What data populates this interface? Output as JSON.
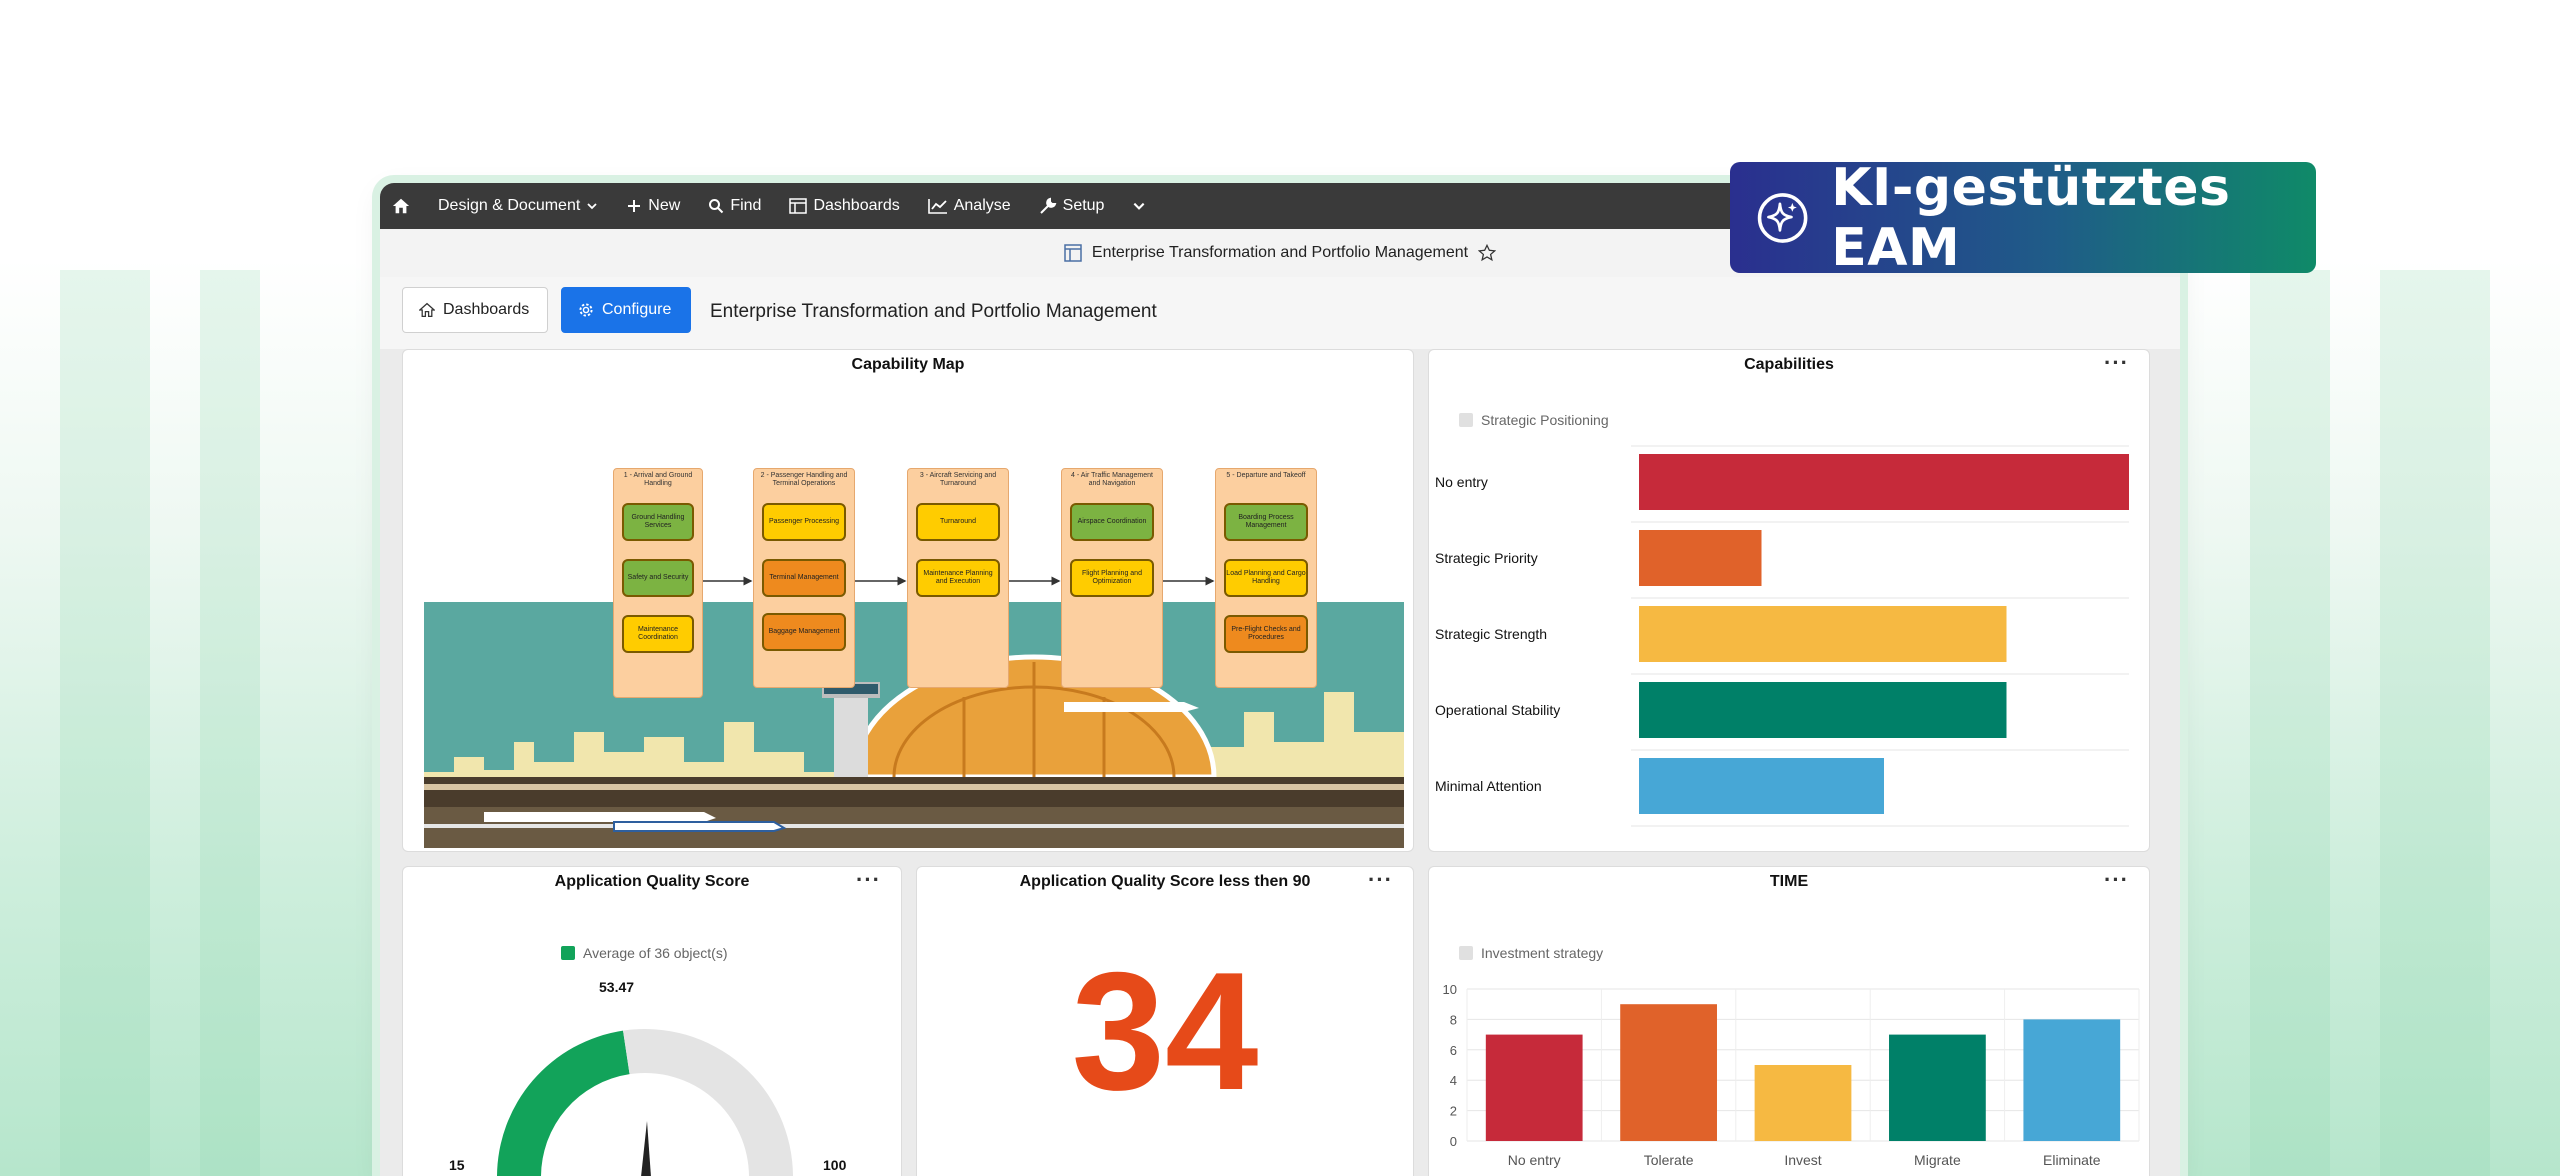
{
  "badge": {
    "text": "KI-gestütztes EAM",
    "icon": "sparkle-icon"
  },
  "topbar": {
    "items": [
      {
        "label": "Design & Document",
        "icon": "chevron-down-icon"
      },
      {
        "label": "New",
        "icon": "plus-icon"
      },
      {
        "label": "Find",
        "icon": "search-icon"
      },
      {
        "label": "Dashboards",
        "icon": "dashboard-icon"
      },
      {
        "label": "Analyse",
        "icon": "chart-line-icon"
      },
      {
        "label": "Setup",
        "icon": "wrench-icon"
      }
    ]
  },
  "titlebar": {
    "title": "Enterprise Transformation and Portfolio Management"
  },
  "dashhead": {
    "dashboards_label": "Dashboards",
    "configure_label": "Configure",
    "title": "Enterprise Transformation and Portfolio Management"
  },
  "capability_map": {
    "title": "Capability Map",
    "columns": [
      {
        "header": "1 - Arrival and Ground Handling",
        "boxes": [
          "Ground Handling Services",
          "Safety and Security",
          "Maintenance Coordination"
        ]
      },
      {
        "header": "2 - Passenger Handling and Terminal Operations",
        "boxes": [
          "Passenger Processing",
          "Terminal Management",
          "Baggage Management"
        ]
      },
      {
        "header": "3 - Aircraft Servicing and Turnaround",
        "boxes": [
          "Turnaround",
          "Maintenance Planning and Execution"
        ]
      },
      {
        "header": "4 - Air Traffic Management and Navigation",
        "boxes": [
          "Airspace Coordination",
          "Flight Planning and Optimization"
        ]
      },
      {
        "header": "5 - Departure and Takeoff",
        "boxes": [
          "Boarding Process Management",
          "Load Planning and Cargo Handling",
          "Pre-Flight Checks and Procedures"
        ]
      }
    ]
  },
  "capabilities": {
    "title": "Capabilities",
    "legend": "Strategic Positioning",
    "more": "···"
  },
  "quality": {
    "title": "Application Quality Score",
    "legend": "Average of 36 object(s)",
    "value": "53.47",
    "min": "15",
    "max": "100",
    "more": "···"
  },
  "kpi": {
    "title": "Application Quality Score less then 90",
    "value": "34",
    "more": "···"
  },
  "time": {
    "title": "TIME",
    "legend": "Investment strategy",
    "more": "···"
  },
  "chart_data": [
    {
      "type": "bar",
      "title": "Capabilities",
      "legend": [
        "Strategic Positioning"
      ],
      "categories": [
        "No entry",
        "Strategic Priority",
        "Strategic Strength",
        "Operational Stability",
        "Minimal Attention"
      ],
      "values": [
        8,
        2,
        6,
        6,
        4
      ],
      "colors": [
        "#c62a3a",
        "#e0622a",
        "#f6b942",
        "#008068",
        "#47a7d6"
      ],
      "orientation": "horizontal"
    },
    {
      "type": "bar",
      "title": "TIME",
      "legend": [
        "Investment strategy"
      ],
      "categories": [
        "No entry",
        "Tolerate",
        "Invest",
        "Migrate",
        "Eliminate"
      ],
      "values": [
        7,
        9,
        5,
        7,
        8
      ],
      "colors": [
        "#c62a3a",
        "#e0622a",
        "#f6b942",
        "#008068",
        "#47a7d6"
      ],
      "ylim": [
        0,
        10
      ],
      "yticks": [
        0,
        2,
        4,
        6,
        8,
        10
      ]
    },
    {
      "type": "gauge",
      "title": "Application Quality Score",
      "value": 53.47,
      "min": 15,
      "max": 100,
      "color": "#12a35a"
    }
  ]
}
